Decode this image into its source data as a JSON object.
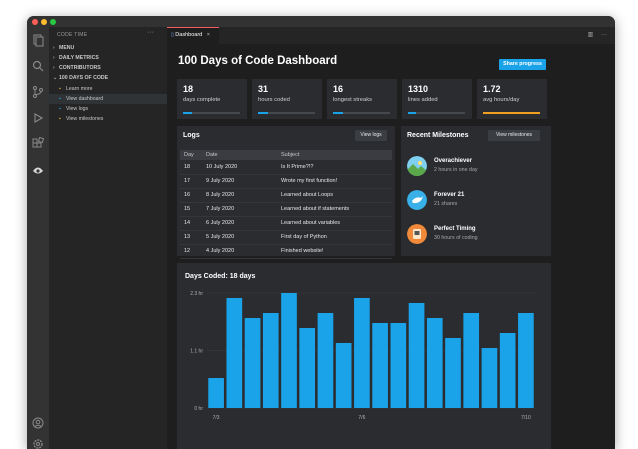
{
  "traffic": {
    "red": "#ff5f57",
    "yellow": "#febc2e",
    "green": "#28c840"
  },
  "activity_icons": [
    "files-icon",
    "search-icon",
    "source-control-icon",
    "run-debug-icon",
    "extensions-icon",
    "codetime-icon",
    "account-icon",
    "settings-gear-icon"
  ],
  "sidebar": {
    "header": "CODE TIME",
    "items": [
      {
        "label": "MENU"
      },
      {
        "label": "DAILY METRICS"
      },
      {
        "label": "CONTRIBUTORS"
      },
      {
        "label": "100 DAYS OF CODE"
      }
    ],
    "sub_items": [
      {
        "label": "Learn more",
        "icon_color": "#e8a640"
      },
      {
        "label": "View dashboard",
        "icon_color": "#1aa3e8"
      },
      {
        "label": "View logs",
        "icon_color": "#1aa3e8"
      },
      {
        "label": "View milestones",
        "icon_color": "#e8a640"
      }
    ]
  },
  "tab": {
    "label": "Dashboard",
    "close": "×"
  },
  "dashboard": {
    "title": "100 Days of Code Dashboard",
    "share_button": "Share progress",
    "stats": [
      {
        "value": "18",
        "label": "days complete",
        "progress": 0.16,
        "color": "blue"
      },
      {
        "value": "31",
        "label": "hours coded",
        "progress": 0.18,
        "color": "blue"
      },
      {
        "value": "16",
        "label": "longest streaks",
        "progress": 0.17,
        "color": "blue"
      },
      {
        "value": "1310",
        "label": "lines added",
        "progress": 0.14,
        "color": "blue"
      },
      {
        "value": "1.72",
        "label": "avg hours/day",
        "progress": 1.0,
        "color": "orange"
      }
    ],
    "logs": {
      "title": "Logs",
      "button": "View logs",
      "columns": [
        "Day",
        "Date",
        "Subject"
      ],
      "rows": [
        [
          "18",
          "10 July 2020",
          "Is It Prime?!?"
        ],
        [
          "17",
          "9 July 2020",
          "Wrote my first function!"
        ],
        [
          "16",
          "8 July 2020",
          "Learned about Loops"
        ],
        [
          "15",
          "7 July 2020",
          "Learned about if statements"
        ],
        [
          "14",
          "6 July 2020",
          "Learned about variables"
        ],
        [
          "13",
          "5 July 2020",
          "First day of Python"
        ],
        [
          "12",
          "4 July 2020",
          "Finished website!"
        ]
      ]
    },
    "milestones": {
      "title": "Recent Milestones",
      "button": "View milestones",
      "items": [
        {
          "name": "Overachiever",
          "sub": "2 hours in one day",
          "icon": "landscape-badge-icon"
        },
        {
          "name": "Forever 21",
          "sub": "21 shares",
          "icon": "bird-badge-icon"
        },
        {
          "name": "Perfect Timing",
          "sub": "30 hours of coding",
          "icon": "clock-badge-icon"
        }
      ]
    }
  },
  "chart_data": {
    "type": "bar",
    "title": "Days Coded: 18 days",
    "yticks": [
      "2.3 hr",
      "1.1 hr",
      "0 hr"
    ],
    "ylim": [
      0,
      2.3
    ],
    "xticks": [
      "7/3",
      "7/6",
      "7/10"
    ],
    "values": [
      0.6,
      2.2,
      1.8,
      1.9,
      2.3,
      1.6,
      1.9,
      1.3,
      2.2,
      1.7,
      1.7,
      2.1,
      1.8,
      1.4,
      1.9,
      1.2,
      1.5,
      1.9
    ],
    "color": "#1aa3e8"
  }
}
